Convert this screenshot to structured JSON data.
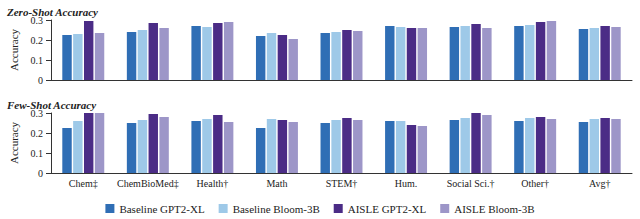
{
  "chart_data": [
    {
      "type": "bar",
      "title": "Zero-Shot Accuracy",
      "y_label": "Accuracy",
      "categories": [
        "Chem‡",
        "ChemBioMed‡",
        "Health†",
        "Math",
        "STEM†",
        "Hum.",
        "Social Sci.†",
        "Other†",
        "Avg†"
      ],
      "series": [
        {
          "name": "Baseline GPT2-XL",
          "color": "#2f6eb5",
          "values": [
            0.225,
            0.24,
            0.27,
            0.22,
            0.235,
            0.27,
            0.265,
            0.27,
            0.255
          ]
        },
        {
          "name": "Baseline Bloom-3B",
          "color": "#9ec9e8",
          "values": [
            0.23,
            0.25,
            0.265,
            0.235,
            0.24,
            0.265,
            0.27,
            0.275,
            0.26
          ]
        },
        {
          "name": "AISLE GPT2-XL",
          "color": "#4b2c86",
          "values": [
            0.295,
            0.285,
            0.285,
            0.225,
            0.25,
            0.26,
            0.28,
            0.29,
            0.27
          ]
        },
        {
          "name": "AISLE Bloom-3B",
          "color": "#9d96c8",
          "values": [
            0.235,
            0.26,
            0.29,
            0.205,
            0.245,
            0.26,
            0.26,
            0.295,
            0.265
          ]
        }
      ],
      "ylim": [
        0,
        0.3
      ],
      "yticks": [
        0,
        0.1,
        0.2,
        0.3
      ],
      "grid": false,
      "tick_labels": "y"
    },
    {
      "type": "bar",
      "title": "Few-Shot Accuracy",
      "y_label": "Accuracy",
      "categories": [
        "Chem‡",
        "ChemBioMed‡",
        "Health†",
        "Math",
        "STEM†",
        "Hum.",
        "Social Sci.†",
        "Other†",
        "Avg†"
      ],
      "series": [
        {
          "name": "Baseline GPT2-XL",
          "color": "#2f6eb5",
          "values": [
            0.225,
            0.25,
            0.26,
            0.225,
            0.25,
            0.26,
            0.265,
            0.26,
            0.255
          ]
        },
        {
          "name": "Baseline Bloom-3B",
          "color": "#9ec9e8",
          "values": [
            0.26,
            0.265,
            0.27,
            0.27,
            0.265,
            0.26,
            0.275,
            0.275,
            0.27
          ]
        },
        {
          "name": "AISLE GPT2-XL",
          "color": "#4b2c86",
          "values": [
            0.3,
            0.295,
            0.29,
            0.265,
            0.275,
            0.24,
            0.3,
            0.28,
            0.275
          ]
        },
        {
          "name": "AISLE Bloom-3B",
          "color": "#9d96c8",
          "values": [
            0.3,
            0.28,
            0.255,
            0.255,
            0.265,
            0.235,
            0.29,
            0.27,
            0.27
          ]
        }
      ],
      "ylim": [
        0,
        0.3
      ],
      "yticks": [
        0,
        0.1,
        0.2,
        0.3
      ],
      "grid": false,
      "legend": "bottom"
    }
  ]
}
